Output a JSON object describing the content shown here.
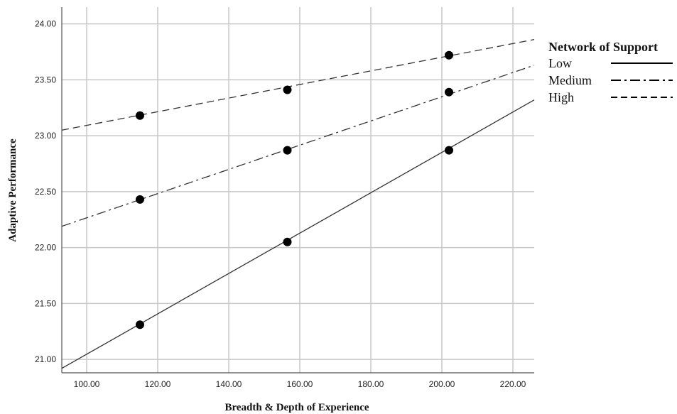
{
  "chart_data": {
    "type": "scatter",
    "xlabel": "Breadth & Depth of Experience",
    "ylabel": "Adaptive Performance",
    "xlim": [
      93,
      226
    ],
    "ylim": [
      20.88,
      24.15
    ],
    "x_ticks": [
      "100.00",
      "120.00",
      "140.00",
      "160.00",
      "180.00",
      "200.00",
      "220.00"
    ],
    "y_ticks": [
      "21.00",
      "21.50",
      "22.00",
      "22.50",
      "23.00",
      "23.50",
      "24.00"
    ],
    "x_tick_values": [
      100,
      120,
      140,
      160,
      180,
      200,
      220
    ],
    "y_tick_values": [
      21,
      21.5,
      22,
      22.5,
      23,
      23.5,
      24
    ],
    "grid": true,
    "legend": {
      "title": "Network of Support",
      "position": "right"
    },
    "series": [
      {
        "name": "Low",
        "line_style": "solid",
        "points": [
          {
            "x": 115,
            "y": 21.31
          },
          {
            "x": 156.5,
            "y": 22.05
          },
          {
            "x": 202,
            "y": 22.87
          }
        ],
        "fit_line": [
          {
            "x": 93,
            "y": 20.92
          },
          {
            "x": 226,
            "y": 23.32
          }
        ]
      },
      {
        "name": "Medium",
        "line_style": "dash-dot",
        "points": [
          {
            "x": 115,
            "y": 22.43
          },
          {
            "x": 156.5,
            "y": 22.87
          },
          {
            "x": 202,
            "y": 23.39
          }
        ],
        "fit_line": [
          {
            "x": 93,
            "y": 22.19
          },
          {
            "x": 226,
            "y": 23.63
          }
        ]
      },
      {
        "name": "High",
        "line_style": "dashed",
        "points": [
          {
            "x": 115,
            "y": 23.18
          },
          {
            "x": 156.5,
            "y": 23.41
          },
          {
            "x": 202,
            "y": 23.72
          }
        ],
        "fit_line": [
          {
            "x": 93,
            "y": 23.05
          },
          {
            "x": 226,
            "y": 23.86
          }
        ]
      }
    ]
  }
}
